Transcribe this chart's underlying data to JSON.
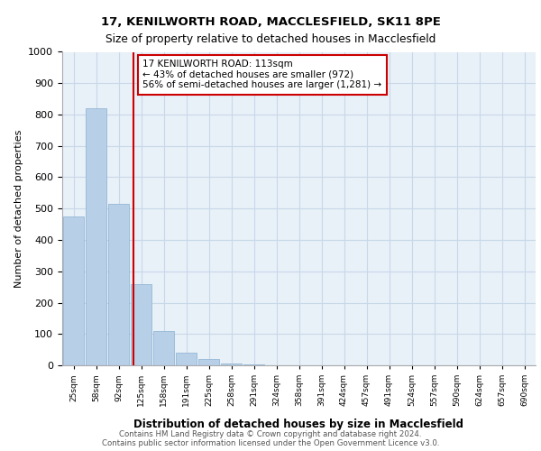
{
  "title1": "17, KENILWORTH ROAD, MACCLESFIELD, SK11 8PE",
  "title2": "Size of property relative to detached houses in Macclesfield",
  "xlabel": "Distribution of detached houses by size in Macclesfield",
  "ylabel": "Number of detached properties",
  "bin_labels": [
    "25sqm",
    "58sqm",
    "92sqm",
    "125sqm",
    "158sqm",
    "191sqm",
    "225sqm",
    "258sqm",
    "291sqm",
    "324sqm",
    "358sqm",
    "391sqm",
    "424sqm",
    "457sqm",
    "491sqm",
    "524sqm",
    "557sqm",
    "590sqm",
    "624sqm",
    "657sqm",
    "690sqm"
  ],
  "bar_values": [
    475,
    820,
    515,
    260,
    110,
    40,
    20,
    5,
    2,
    1,
    0,
    0,
    0,
    0,
    0,
    0,
    0,
    0,
    0,
    0,
    0
  ],
  "bar_color": "#b8cfe8",
  "bar_edge_color": "#8ab0d0",
  "grid_color": "#c8d8e8",
  "bg_color": "#e8f0f8",
  "property_line_x": 2.67,
  "annotation_text": "17 KENILWORTH ROAD: 113sqm\n← 43% of detached houses are smaller (972)\n56% of semi-detached houses are larger (1,281) →",
  "annotation_box_color": "#ffffff",
  "annotation_box_edge": "#cc0000",
  "property_line_color": "#cc0000",
  "ylim": [
    0,
    1000
  ],
  "yticks": [
    0,
    100,
    200,
    300,
    400,
    500,
    600,
    700,
    800,
    900,
    1000
  ],
  "footer1": "Contains HM Land Registry data © Crown copyright and database right 2024.",
  "footer2": "Contains public sector information licensed under the Open Government Licence v3.0."
}
